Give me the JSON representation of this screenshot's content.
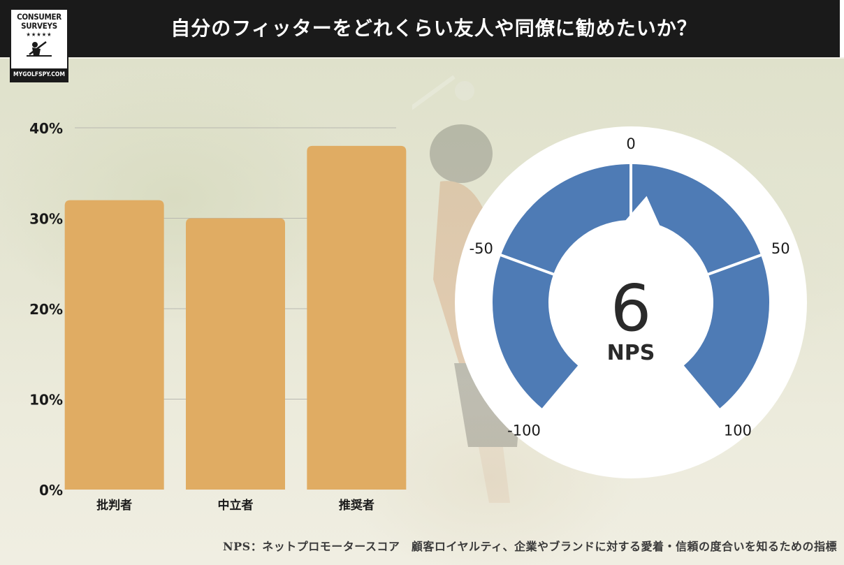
{
  "header": {
    "title": "自分のフィッターをどれくらい友人や同僚に勧めたいか？"
  },
  "logo": {
    "line1": "CONSUMER",
    "line2": "SURVEYS",
    "stars": "★★★★★",
    "site": "MYGOLFSPY.COM"
  },
  "chart_data": {
    "type": "bar",
    "title": "",
    "xlabel": "",
    "ylabel": "",
    "categories": [
      "批判者",
      "中立者",
      "推奨者"
    ],
    "values": [
      32,
      30,
      38
    ],
    "ylim": [
      0,
      40
    ],
    "yticks": [
      "0%",
      "10%",
      "20%",
      "30%",
      "40%"
    ],
    "bar_color": "#e0ac63",
    "grid": true
  },
  "gauge": {
    "value": "6",
    "value_number": 6,
    "label": "NPS",
    "range": [
      -100,
      100
    ],
    "tick_labels": [
      "-100",
      "-50",
      "0",
      "50",
      "100"
    ],
    "tick_values": [
      -100,
      -50,
      0,
      50,
      100
    ],
    "color": "#4e7bb5"
  },
  "footnote": "NPS：ネットプロモータースコア　顧客ロイヤルティ、企業やブランドに対する愛着・信頼の度合いを知るための指標",
  "colors": {
    "header_bg": "#1a1a1a",
    "bar": "#e0ac63",
    "gauge": "#4e7bb5"
  }
}
